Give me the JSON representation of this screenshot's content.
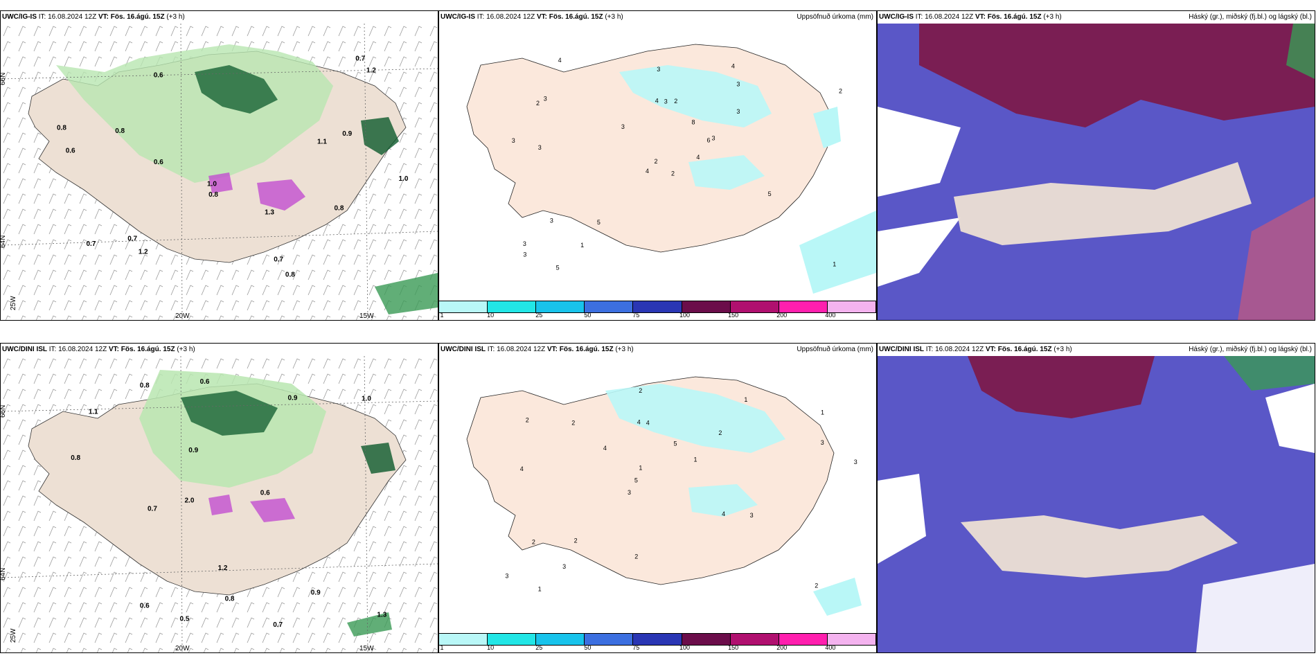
{
  "panels": [
    {
      "model": "UWC/IG-IS",
      "it": "IT: 16.08.2024 12Z",
      "vt_label": "VT:",
      "vt": "Fös. 16.ágú. 15Z",
      "lead": "(+3 h)",
      "right": ""
    },
    {
      "model": "UWC/IG-IS",
      "it": "IT: 16.08.2024 12Z",
      "vt_label": "VT:",
      "vt": "Fös. 16.ágú. 15Z",
      "lead": "(+3 h)",
      "right": "Uppsöfnuð úrkoma (mm)"
    },
    {
      "model": "UWC/IG-IS",
      "it": "IT: 16.08.2024 12Z",
      "vt_label": "VT:",
      "vt": "Fös. 16.ágú. 15Z",
      "lead": "(+3 h)",
      "right": "Háský (gr.), miðský (fj.bl.) og lágský (bl.)"
    },
    {
      "model": "UWC/DINI ISL",
      "it": "IT: 16.08.2024 12Z",
      "vt_label": "VT:",
      "vt": "Fös. 16.ágú. 15Z",
      "lead": "(+3 h)",
      "right": ""
    },
    {
      "model": "UWC/DINI ISL",
      "it": "IT: 16.08.2024 12Z",
      "vt_label": "VT:",
      "vt": "Fös. 16.ágú. 15Z",
      "lead": "(+3 h)",
      "right": "Uppsöfnuð úrkoma (mm)"
    },
    {
      "model": "UWC/DINI ISL",
      "it": "IT: 16.08.2024 12Z",
      "vt_label": "VT:",
      "vt": "Fös. 16.ágú. 15Z",
      "lead": "(+3 h)",
      "right": "Háský (gr.), miðský (fj.bl.) og lágský (bl.)"
    }
  ],
  "axis_labels": {
    "lat66": "66N",
    "lat64": "64N",
    "lon20": "20W",
    "lon15": "15W",
    "lon25": "25W"
  },
  "legend": {
    "colors": [
      "#b9f7f7",
      "#22e6e6",
      "#18c3eb",
      "#3c6fe0",
      "#2a36b4",
      "#6b0d4a",
      "#b0106f",
      "#ff1fae",
      "#f4b3ef"
    ],
    "ticks": [
      "1",
      "10",
      "25",
      "50",
      "75",
      "100",
      "150",
      "200",
      "400"
    ]
  },
  "precip_values_top": [
    "2",
    "2",
    "2",
    "3",
    "6",
    "5",
    "4",
    "2",
    "3",
    "4",
    "4",
    "1",
    "3",
    "2",
    "4",
    "3",
    "5",
    "4",
    "8",
    "3",
    "3",
    "3",
    "1",
    "3",
    "3",
    "5",
    "3",
    "3",
    "3"
  ],
  "precip_values_bottom": [
    "2",
    "4",
    "1",
    "3",
    "2",
    "1",
    "4",
    "5",
    "2",
    "4",
    "3",
    "3",
    "4",
    "1",
    "3",
    "2",
    "2",
    "3",
    "4",
    "3",
    "5",
    "2",
    "1",
    "2",
    "1",
    "2"
  ],
  "wind_values_top": [
    "0.8",
    "0.6",
    "0.7",
    "0.8",
    "0.9",
    "0.7",
    "1.0",
    "0.6",
    "0.8",
    "1.2",
    "0.7",
    "0.8",
    "1.0",
    "1.3",
    "1.1",
    "0.7",
    "0.6",
    "1.2",
    "0.8"
  ],
  "wind_values_bottom": [
    "0.5",
    "0.7",
    "0.6",
    "0.9",
    "0.8",
    "1.1",
    "0.7",
    "1.3",
    "0.6",
    "0.9",
    "1.0",
    "0.8",
    "2.0",
    "1.2",
    "0.9",
    "0.6",
    "0.8"
  ],
  "colors": {
    "land": "#ede0d4",
    "land_precip": "#fbe8dc",
    "green_lt": "#b8e6b0",
    "green_dk": "#0c5a2c",
    "purple": "#c24fd0",
    "cloud_hi": "#7d1846",
    "cloud_mid": "#5a57c7",
    "cloud_low": "#3b3aa8"
  }
}
